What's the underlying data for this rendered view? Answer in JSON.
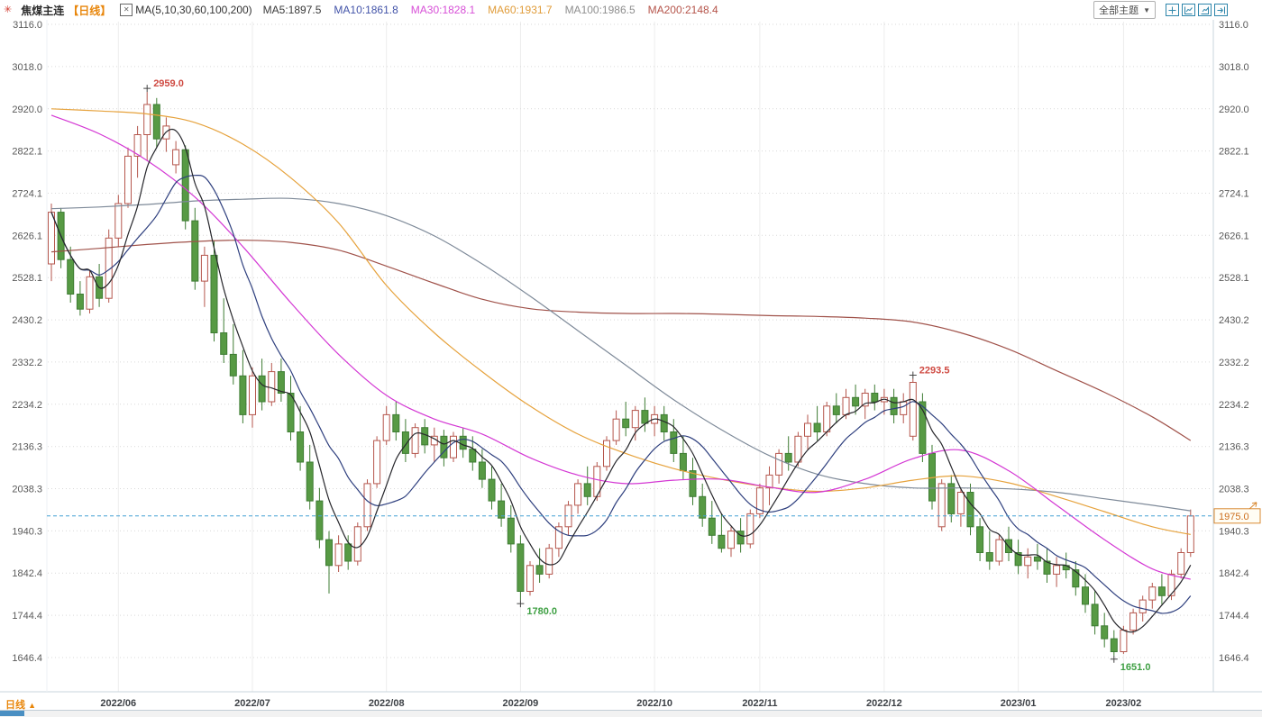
{
  "header": {
    "title": "焦煤主连",
    "period_tag": "【日线】",
    "ma_formula": "MA(5,10,30,60,100,200)",
    "ma_items": [
      {
        "label": "MA5:1897.5",
        "color": "#3a3a3a"
      },
      {
        "label": "MA10:1861.8",
        "color": "#4253a8"
      },
      {
        "label": "MA30:1828.1",
        "color": "#d74fd7"
      },
      {
        "label": "MA60:1931.7",
        "color": "#e09c3a"
      },
      {
        "label": "MA100:1986.5",
        "color": "#8f8f8f"
      },
      {
        "label": "MA200:2148.4",
        "color": "#b5544a"
      }
    ],
    "theme_dropdown": "全部主题",
    "toolbar_icons": [
      "crosshair-icon",
      "scale-left-pane-icon",
      "scale-right-pane-icon",
      "step-right-icon"
    ]
  },
  "icons": {
    "live": "✳",
    "caret_down": "▼",
    "period_up": "▲",
    "indicator": "✕"
  },
  "bottom": {
    "label": "日线"
  },
  "axis": {
    "y_ticks": [
      3116.0,
      3018.0,
      2920.0,
      2822.1,
      2724.1,
      2626.1,
      2528.1,
      2430.2,
      2332.2,
      2234.2,
      2136.3,
      2038.3,
      1940.3,
      1842.4,
      1744.4,
      1646.4
    ],
    "x_labels": [
      {
        "text": "2022/06",
        "index": 7
      },
      {
        "text": "2022/07",
        "index": 21
      },
      {
        "text": "2022/08",
        "index": 35
      },
      {
        "text": "2022/09",
        "index": 49
      },
      {
        "text": "2022/10",
        "index": 63
      },
      {
        "text": "2022/11",
        "index": 74
      },
      {
        "text": "2022/12",
        "index": 87
      },
      {
        "text": "2023/01",
        "index": 101
      },
      {
        "text": "2023/02",
        "index": 112
      }
    ]
  },
  "chart_data": {
    "type": "candlestick",
    "title": "焦煤主连 日线 (coking coal continuous, daily)",
    "ylim": [
      1646.4,
      3116.0
    ],
    "grid": true,
    "last_price": 1975.0,
    "candles": [
      [
        2560,
        2700,
        2520,
        2680
      ],
      [
        2680,
        2690,
        2550,
        2570
      ],
      [
        2570,
        2600,
        2470,
        2490
      ],
      [
        2490,
        2520,
        2440,
        2455
      ],
      [
        2455,
        2545,
        2445,
        2530
      ],
      [
        2530,
        2560,
        2460,
        2480
      ],
      [
        2480,
        2640,
        2470,
        2620
      ],
      [
        2620,
        2720,
        2600,
        2700
      ],
      [
        2700,
        2830,
        2690,
        2810
      ],
      [
        2810,
        2880,
        2760,
        2860
      ],
      [
        2860,
        2959,
        2800,
        2930
      ],
      [
        2930,
        2945,
        2830,
        2850
      ],
      [
        2850,
        2900,
        2820,
        2880
      ],
      [
        2790,
        2845,
        2770,
        2825
      ],
      [
        2825,
        2835,
        2640,
        2660
      ],
      [
        2660,
        2690,
        2500,
        2520
      ],
      [
        2520,
        2600,
        2460,
        2580
      ],
      [
        2580,
        2615,
        2380,
        2400
      ],
      [
        2400,
        2480,
        2330,
        2350
      ],
      [
        2350,
        2420,
        2280,
        2300
      ],
      [
        2300,
        2360,
        2190,
        2210
      ],
      [
        2210,
        2320,
        2180,
        2300
      ],
      [
        2300,
        2340,
        2220,
        2240
      ],
      [
        2240,
        2330,
        2230,
        2310
      ],
      [
        2310,
        2340,
        2240,
        2260
      ],
      [
        2260,
        2300,
        2150,
        2170
      ],
      [
        2170,
        2230,
        2080,
        2100
      ],
      [
        2100,
        2140,
        1990,
        2010
      ],
      [
        2010,
        2040,
        1900,
        1920
      ],
      [
        1920,
        1940,
        1795,
        1860
      ],
      [
        1860,
        1930,
        1845,
        1910
      ],
      [
        1910,
        1930,
        1850,
        1870
      ],
      [
        1870,
        1960,
        1860,
        1950
      ],
      [
        1950,
        2060,
        1940,
        2050
      ],
      [
        2050,
        2160,
        2040,
        2150
      ],
      [
        2150,
        2230,
        2140,
        2210
      ],
      [
        2210,
        2240,
        2150,
        2170
      ],
      [
        2170,
        2200,
        2100,
        2120
      ],
      [
        2120,
        2190,
        2110,
        2180
      ],
      [
        2180,
        2200,
        2120,
        2140
      ],
      [
        2140,
        2180,
        2100,
        2160
      ],
      [
        2160,
        2175,
        2090,
        2110
      ],
      [
        2110,
        2170,
        2100,
        2160
      ],
      [
        2160,
        2180,
        2110,
        2130
      ],
      [
        2130,
        2160,
        2080,
        2100
      ],
      [
        2100,
        2130,
        2040,
        2060
      ],
      [
        2060,
        2090,
        1990,
        2010
      ],
      [
        2010,
        2050,
        1950,
        1970
      ],
      [
        1970,
        2000,
        1890,
        1910
      ],
      [
        1910,
        1930,
        1780,
        1800
      ],
      [
        1800,
        1870,
        1790,
        1860
      ],
      [
        1860,
        1900,
        1820,
        1840
      ],
      [
        1840,
        1910,
        1830,
        1900
      ],
      [
        1900,
        1960,
        1880,
        1950
      ],
      [
        1950,
        2010,
        1930,
        2000
      ],
      [
        2000,
        2060,
        1980,
        2050
      ],
      [
        2050,
        2090,
        2000,
        2020
      ],
      [
        2020,
        2100,
        2010,
        2090
      ],
      [
        2090,
        2160,
        2080,
        2150
      ],
      [
        2150,
        2220,
        2140,
        2200
      ],
      [
        2200,
        2240,
        2160,
        2180
      ],
      [
        2180,
        2230,
        2150,
        2220
      ],
      [
        2220,
        2250,
        2170,
        2190
      ],
      [
        2190,
        2230,
        2160,
        2210
      ],
      [
        2210,
        2230,
        2150,
        2170
      ],
      [
        2170,
        2200,
        2100,
        2120
      ],
      [
        2120,
        2160,
        2060,
        2080
      ],
      [
        2080,
        2110,
        2000,
        2020
      ],
      [
        2020,
        2050,
        1950,
        1970
      ],
      [
        1970,
        2010,
        1910,
        1930
      ],
      [
        1930,
        1980,
        1890,
        1900
      ],
      [
        1900,
        1950,
        1880,
        1940
      ],
      [
        1940,
        1970,
        1890,
        1910
      ],
      [
        1910,
        1990,
        1900,
        1980
      ],
      [
        1980,
        2050,
        1970,
        2040
      ],
      [
        2040,
        2090,
        2000,
        2070
      ],
      [
        2070,
        2130,
        2050,
        2120
      ],
      [
        2120,
        2160,
        2080,
        2100
      ],
      [
        2100,
        2170,
        2090,
        2160
      ],
      [
        2160,
        2210,
        2130,
        2190
      ],
      [
        2190,
        2230,
        2150,
        2170
      ],
      [
        2170,
        2240,
        2160,
        2230
      ],
      [
        2230,
        2260,
        2190,
        2210
      ],
      [
        2210,
        2270,
        2200,
        2250
      ],
      [
        2250,
        2280,
        2210,
        2230
      ],
      [
        2230,
        2270,
        2200,
        2260
      ],
      [
        2260,
        2280,
        2220,
        2240
      ],
      [
        2240,
        2270,
        2210,
        2250
      ],
      [
        2250,
        2270,
        2190,
        2210
      ],
      [
        2210,
        2260,
        2190,
        2240
      ],
      [
        2160,
        2293.5,
        2150,
        2285
      ],
      [
        2240,
        2260,
        2100,
        2120
      ],
      [
        2120,
        2140,
        1990,
        2010
      ],
      [
        1950,
        2060,
        1940,
        2050
      ],
      [
        2050,
        2070,
        1960,
        1980
      ],
      [
        1980,
        2040,
        1950,
        2030
      ],
      [
        2030,
        2050,
        1930,
        1950
      ],
      [
        1950,
        1970,
        1870,
        1890
      ],
      [
        1890,
        1940,
        1850,
        1870
      ],
      [
        1870,
        1930,
        1860,
        1920
      ],
      [
        1920,
        1950,
        1870,
        1890
      ],
      [
        1890,
        1920,
        1840,
        1860
      ],
      [
        1860,
        1900,
        1830,
        1880
      ],
      [
        1880,
        1910,
        1850,
        1870
      ],
      [
        1870,
        1900,
        1820,
        1840
      ],
      [
        1840,
        1880,
        1810,
        1860
      ],
      [
        1860,
        1890,
        1830,
        1850
      ],
      [
        1850,
        1870,
        1790,
        1810
      ],
      [
        1810,
        1840,
        1750,
        1770
      ],
      [
        1770,
        1800,
        1700,
        1720
      ],
      [
        1720,
        1750,
        1670,
        1690
      ],
      [
        1690,
        1710,
        1651,
        1660
      ],
      [
        1660,
        1720,
        1655,
        1710
      ],
      [
        1710,
        1760,
        1700,
        1750
      ],
      [
        1750,
        1790,
        1730,
        1780
      ],
      [
        1780,
        1820,
        1760,
        1810
      ],
      [
        1810,
        1840,
        1770,
        1790
      ],
      [
        1790,
        1850,
        1780,
        1840
      ],
      [
        1840,
        1900,
        1830,
        1890
      ],
      [
        1890,
        1990,
        1880,
        1975
      ]
    ],
    "ma_sample_idx": [
      0,
      5,
      10,
      15,
      20,
      25,
      30,
      35,
      40,
      45,
      50,
      55,
      60,
      65,
      70,
      75,
      80,
      85,
      90,
      95,
      100,
      105,
      110,
      115,
      119
    ],
    "ma_series": [
      {
        "name": "MA5",
        "color": "#26262b",
        "window": 5,
        "computed": true
      },
      {
        "name": "MA10",
        "color": "#2e3f7e",
        "window": 10,
        "computed": true
      },
      {
        "name": "MA30",
        "color": "#d438d4",
        "values": [
          2905,
          2862,
          2800,
          2715,
          2600,
          2470,
          2350,
          2255,
          2200,
          2165,
          2110,
          2070,
          2050,
          2058,
          2060,
          2042,
          2030,
          2060,
          2108,
          2128,
          2080,
          2000,
          1920,
          1852,
          1828
        ]
      },
      {
        "name": "MA60",
        "color": "#e6a23c",
        "values": [
          2920,
          2915,
          2908,
          2888,
          2838,
          2760,
          2655,
          2510,
          2400,
          2310,
          2230,
          2165,
          2120,
          2085,
          2060,
          2042,
          2032,
          2040,
          2058,
          2068,
          2052,
          2020,
          1985,
          1950,
          1932
        ]
      },
      {
        "name": "MA100",
        "color": "#7e8a99",
        "values": [
          2688,
          2692,
          2698,
          2706,
          2710,
          2712,
          2700,
          2672,
          2625,
          2560,
          2485,
          2405,
          2325,
          2245,
          2175,
          2115,
          2072,
          2050,
          2040,
          2040,
          2038,
          2030,
          2015,
          2000,
          1987
        ]
      },
      {
        "name": "MA200",
        "color": "#a0524a",
        "values": [
          2588,
          2596,
          2605,
          2612,
          2615,
          2610,
          2592,
          2555,
          2515,
          2478,
          2456,
          2448,
          2445,
          2445,
          2443,
          2440,
          2438,
          2434,
          2425,
          2400,
          2362,
          2312,
          2262,
          2205,
          2150
        ]
      }
    ],
    "annotations": [
      {
        "index": 10,
        "price": 2959.0,
        "label": "2959.0",
        "kind": "high"
      },
      {
        "index": 49,
        "price": 1780.0,
        "label": "1780.0",
        "kind": "low"
      },
      {
        "index": 90,
        "price": 2293.5,
        "label": "2293.5",
        "kind": "high"
      },
      {
        "index": 111,
        "price": 1651.0,
        "label": "1651.0",
        "kind": "low"
      }
    ],
    "colors": {
      "up_stroke": "#b5564c",
      "up_fill": "#ffffff",
      "down_stroke": "#3e7c33",
      "down_fill": "#579a44",
      "ann_high": "#cf4a42",
      "ann_low": "#3fa044",
      "last_price_line": "#44a0d4",
      "tag_border": "#d98a33",
      "tag_text": "#cd6f1f",
      "grid_h": "#d9d9d9",
      "grid_v": "#ededed",
      "axis_border": "#c9d4dc"
    }
  }
}
